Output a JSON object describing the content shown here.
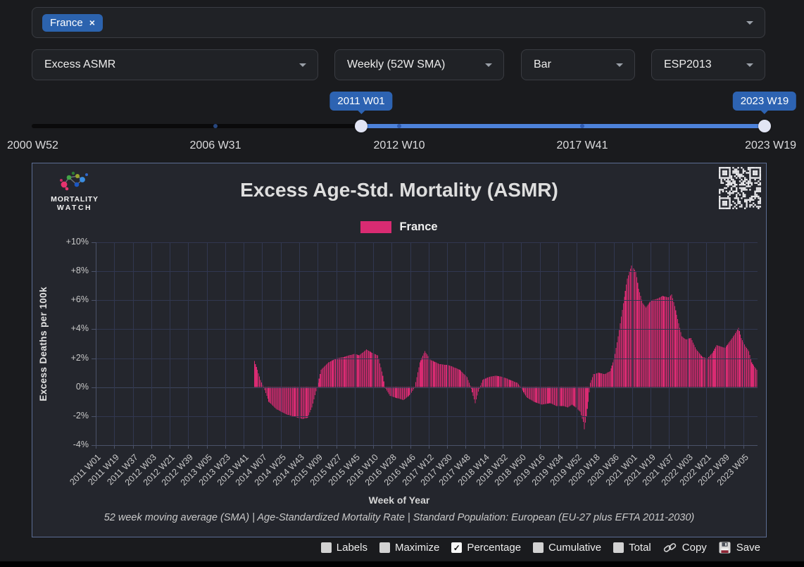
{
  "filters": {
    "country_select": {
      "chips": [
        {
          "label": "France",
          "remove_icon": "×"
        }
      ]
    },
    "dropdowns": [
      {
        "id": "metric",
        "value": "Excess ASMR"
      },
      {
        "id": "frequency",
        "value": "Weekly (52W SMA)"
      },
      {
        "id": "chart_style",
        "value": "Bar"
      },
      {
        "id": "standard_population",
        "value": "ESP2013"
      }
    ]
  },
  "slider": {
    "start_tooltip": "2011 W01",
    "end_tooltip": "2023 W19",
    "axis_labels": [
      "2000 W52",
      "2006 W31",
      "2012 W10",
      "2017 W41",
      "2023 W19"
    ]
  },
  "chart": {
    "brand_line1": "MORTALITY",
    "brand_line2": "WATCH",
    "title": "Excess Age-Std. Mortality (ASMR)",
    "legend": {
      "label": "France",
      "color": "#d92b72"
    },
    "ylabel": "Excess Deaths per 100k",
    "xlabel": "Week of Year",
    "footnote": "52 week moving average (SMA) | Age-Standardized Mortality Rate | Standard Population: European (EU-27 plus EFTA 2011-2030)"
  },
  "chart_data": {
    "type": "bar",
    "series": [
      {
        "name": "France",
        "color": "#d92b72"
      }
    ],
    "unit": "% excess deaths (52W SMA)",
    "ylim": [
      -4,
      10
    ],
    "ytick_labels": [
      "+10%",
      "+8%",
      "+6%",
      "+4%",
      "+2%",
      "0%",
      "-2%",
      "-4%"
    ],
    "xtick_labels": [
      "2011 W01",
      "2011 W19",
      "2011 W37",
      "2012 W03",
      "2012 W21",
      "2012 W39",
      "2013 W05",
      "2013 W23",
      "2013 W41",
      "2014 W07",
      "2014 W25",
      "2014 W43",
      "2015 W09",
      "2015 W27",
      "2015 W45",
      "2016 W10",
      "2016 W28",
      "2016 W46",
      "2017 W12",
      "2017 W30",
      "2017 W48",
      "2018 W14",
      "2018 W32",
      "2018 W50",
      "2019 W16",
      "2019 W34",
      "2019 W52",
      "2020 W18",
      "2020 W36",
      "2021 W01",
      "2021 W19",
      "2021 W37",
      "2022 W03",
      "2022 W21",
      "2022 W39",
      "2023 W05"
    ],
    "weeks_per_xtick": 18,
    "x_range_weeks": [
      0,
      644
    ],
    "x_week_zero": "2011 W01",
    "x_week_end": "2023 W19",
    "first_bar_week": 154,
    "keypoints_week_value": [
      [
        154,
        1.8
      ],
      [
        157,
        1.2
      ],
      [
        160,
        0.5
      ],
      [
        163,
        0.0
      ],
      [
        168,
        -1.0
      ],
      [
        175,
        -1.5
      ],
      [
        186,
        -1.9
      ],
      [
        196,
        -2.1
      ],
      [
        201,
        -2.2
      ],
      [
        206,
        -2.1
      ],
      [
        210,
        -1.4
      ],
      [
        215,
        0.0
      ],
      [
        219,
        1.2
      ],
      [
        226,
        1.7
      ],
      [
        234,
        2.0
      ],
      [
        242,
        2.1
      ],
      [
        251,
        2.3
      ],
      [
        256,
        2.2
      ],
      [
        263,
        2.6
      ],
      [
        268,
        2.4
      ],
      [
        274,
        2.2
      ],
      [
        279,
        0.8
      ],
      [
        281,
        0.0
      ],
      [
        286,
        -0.6
      ],
      [
        295,
        -0.8
      ],
      [
        299,
        -0.9
      ],
      [
        306,
        -0.5
      ],
      [
        310,
        0.0
      ],
      [
        315,
        1.7
      ],
      [
        320,
        2.5
      ],
      [
        325,
        1.9
      ],
      [
        334,
        1.6
      ],
      [
        344,
        1.5
      ],
      [
        354,
        1.2
      ],
      [
        361,
        0.7
      ],
      [
        365,
        -0.1
      ],
      [
        369,
        -1.1
      ],
      [
        372,
        -0.3
      ],
      [
        376,
        0.5
      ],
      [
        382,
        0.7
      ],
      [
        389,
        0.8
      ],
      [
        396,
        0.7
      ],
      [
        403,
        0.5
      ],
      [
        410,
        0.3
      ],
      [
        413,
        0.0
      ],
      [
        419,
        -0.7
      ],
      [
        426,
        -1.0
      ],
      [
        434,
        -1.2
      ],
      [
        442,
        -1.1
      ],
      [
        448,
        -1.3
      ],
      [
        455,
        -1.3
      ],
      [
        459,
        -1.4
      ],
      [
        463,
        -1.2
      ],
      [
        467,
        -1.4
      ],
      [
        471,
        -1.7
      ],
      [
        474,
        -2.4
      ],
      [
        475,
        -2.9
      ],
      [
        477,
        -2.0
      ],
      [
        479,
        -1.0
      ],
      [
        481,
        0.3
      ],
      [
        484,
        0.9
      ],
      [
        489,
        1.0
      ],
      [
        495,
        0.9
      ],
      [
        500,
        1.1
      ],
      [
        504,
        1.9
      ],
      [
        508,
        3.5
      ],
      [
        513,
        5.8
      ],
      [
        517,
        7.5
      ],
      [
        521,
        8.4
      ],
      [
        525,
        8.0
      ],
      [
        528,
        6.8
      ],
      [
        532,
        5.8
      ],
      [
        535,
        5.5
      ],
      [
        540,
        6.0
      ],
      [
        546,
        6.1
      ],
      [
        551,
        6.3
      ],
      [
        557,
        6.2
      ],
      [
        560,
        6.4
      ],
      [
        563,
        5.6
      ],
      [
        567,
        4.4
      ],
      [
        570,
        3.5
      ],
      [
        574,
        3.3
      ],
      [
        579,
        3.4
      ],
      [
        584,
        2.6
      ],
      [
        590,
        2.1
      ],
      [
        595,
        2.0
      ],
      [
        600,
        2.4
      ],
      [
        604,
        2.9
      ],
      [
        608,
        2.8
      ],
      [
        612,
        2.7
      ],
      [
        617,
        3.2
      ],
      [
        621,
        3.6
      ],
      [
        625,
        4.1
      ],
      [
        628,
        3.4
      ],
      [
        632,
        2.8
      ],
      [
        635,
        2.5
      ],
      [
        638,
        1.7
      ],
      [
        642,
        1.3
      ],
      [
        644,
        1.1
      ]
    ]
  },
  "controls": {
    "checkboxes": [
      {
        "label": "Labels",
        "checked": false
      },
      {
        "label": "Maximize",
        "checked": false
      },
      {
        "label": "Percentage",
        "checked": true
      },
      {
        "label": "Cumulative",
        "checked": false
      },
      {
        "label": "Total",
        "checked": false
      }
    ],
    "buttons": [
      {
        "label": "Copy"
      },
      {
        "label": "Save"
      }
    ]
  }
}
